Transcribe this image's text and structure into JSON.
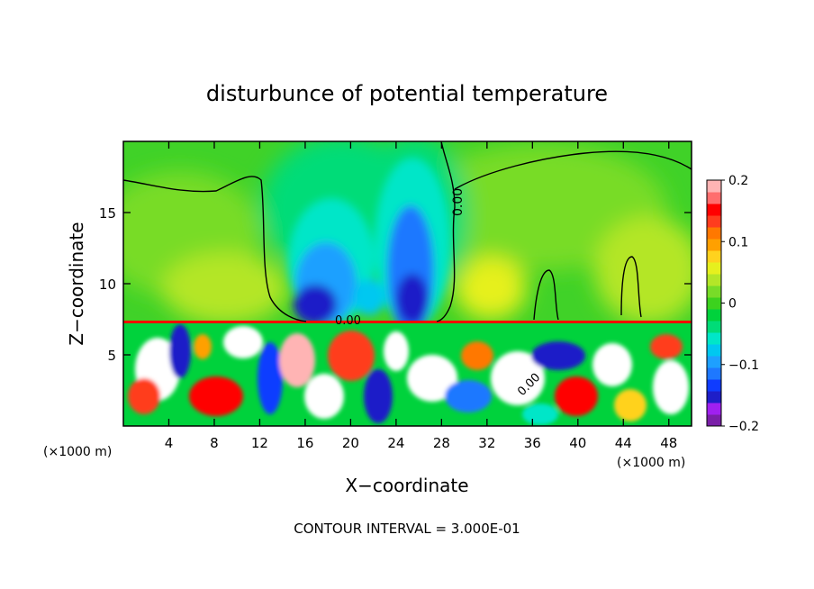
{
  "chart_data": {
    "type": "heatmap",
    "title": "disturbunce of potential temperature",
    "xlabel": "X−coordinate",
    "ylabel": "Z−coordinate",
    "x_unit_left": "(×1000 m)",
    "x_unit_right": "(×1000 m)",
    "xlim": [
      0,
      50
    ],
    "ylim": [
      0,
      20
    ],
    "x_ticks": [
      4,
      8,
      12,
      16,
      20,
      24,
      28,
      32,
      36,
      40,
      44,
      48
    ],
    "x_tick_labels": [
      "4",
      "8",
      "12",
      "16",
      "20",
      "24",
      "28",
      "32",
      "36",
      "40",
      "44",
      "48"
    ],
    "y_ticks": [
      5,
      10,
      15
    ],
    "y_tick_labels": [
      "5",
      "10",
      "15"
    ],
    "colorbar": {
      "min": -0.2,
      "max": 0.2,
      "ticks": [
        0.2,
        0.1,
        0,
        -0.1,
        -0.2
      ],
      "tick_labels": [
        "0.2",
        "0.1",
        "0",
        "−0.1",
        "−0.2"
      ],
      "colors": [
        "#7a1fa8",
        "#a020f0",
        "#1e1ec8",
        "#0f3cff",
        "#1e78ff",
        "#1ea0ff",
        "#00c8f0",
        "#00e6c8",
        "#00dc78",
        "#00d23c",
        "#3cd21e",
        "#78dc28",
        "#b4e628",
        "#e6f01e",
        "#ffd21e",
        "#ffa000",
        "#ff7800",
        "#ff3c1e",
        "#ff0000",
        "#ff6e6e",
        "#ffb4b4"
      ]
    },
    "contour_labels": [
      "0.00",
      "0.00",
      "0.00"
    ],
    "contour_interval_text": "CONTOUR INTERVAL = 3.000E-01",
    "field_note": "upper layer (z > 7.3) mostly ~+0.03 with negative plumes near x=16-19 and x=22-28; lower layer (z < 7.3) highly turbulent, values -0.2 to +0.2"
  }
}
